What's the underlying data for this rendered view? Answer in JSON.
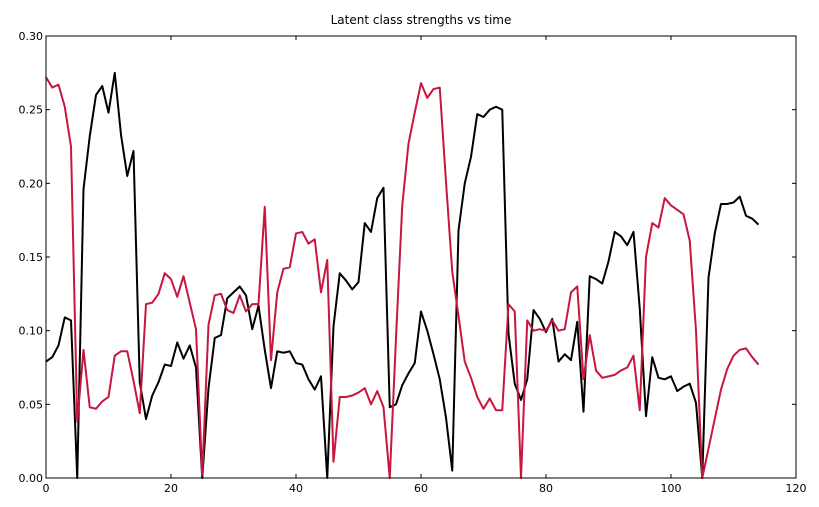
{
  "chart_data": {
    "type": "line",
    "title": "Latent class strengths vs time",
    "xlabel": "",
    "ylabel": "",
    "xlim": [
      0,
      120
    ],
    "ylim": [
      0.0,
      0.3
    ],
    "xticks": [
      0,
      20,
      40,
      60,
      80,
      100,
      120
    ],
    "yticks": [
      0.0,
      0.05,
      0.1,
      0.15,
      0.2,
      0.25,
      0.3
    ],
    "xtick_labels": [
      "0",
      "20",
      "40",
      "60",
      "80",
      "100",
      "120"
    ],
    "ytick_labels": [
      "0.00",
      "0.05",
      "0.10",
      "0.15",
      "0.20",
      "0.25",
      "0.30"
    ],
    "grid": false,
    "series": [
      {
        "color": "#000000",
        "x": [
          0,
          1,
          2,
          3,
          4,
          5,
          6,
          7,
          8,
          9,
          10,
          11,
          12,
          13,
          14,
          15,
          16,
          17,
          18,
          19,
          20,
          21,
          22,
          23,
          24,
          25,
          26,
          27,
          28,
          29,
          30,
          31,
          32,
          33,
          34,
          35,
          36,
          37,
          38,
          39,
          40,
          41,
          42,
          43,
          44,
          45,
          46,
          47,
          48,
          49,
          50,
          51,
          52,
          53,
          54,
          55,
          56,
          57,
          58,
          59,
          60,
          61,
          62,
          63,
          64,
          65,
          66,
          67,
          68,
          69,
          70,
          71,
          72,
          73,
          74,
          75,
          76,
          77,
          78,
          79,
          80,
          81,
          82,
          83,
          84,
          85,
          86,
          87,
          88,
          89,
          90,
          91,
          92,
          93,
          94,
          95,
          96,
          97,
          98,
          99,
          100,
          101,
          102,
          103,
          104,
          105,
          106,
          107,
          108,
          109,
          110,
          111,
          112,
          113,
          114
        ],
        "y": [
          0.079,
          0.082,
          0.09,
          0.109,
          0.107,
          0.0,
          0.196,
          0.232,
          0.26,
          0.266,
          0.248,
          0.275,
          0.233,
          0.205,
          0.222,
          0.065,
          0.04,
          0.056,
          0.065,
          0.077,
          0.076,
          0.092,
          0.081,
          0.09,
          0.075,
          0.0,
          0.061,
          0.095,
          0.097,
          0.122,
          0.126,
          0.13,
          0.124,
          0.101,
          0.117,
          0.087,
          0.061,
          0.086,
          0.085,
          0.086,
          0.078,
          0.077,
          0.067,
          0.06,
          0.069,
          0.0,
          0.103,
          0.139,
          0.134,
          0.128,
          0.133,
          0.173,
          0.167,
          0.19,
          0.197,
          0.048,
          0.05,
          0.063,
          0.071,
          0.078,
          0.113,
          0.1,
          0.084,
          0.067,
          0.041,
          0.005,
          0.168,
          0.2,
          0.218,
          0.247,
          0.245,
          0.25,
          0.252,
          0.25,
          0.098,
          0.064,
          0.053,
          0.067,
          0.114,
          0.108,
          0.099,
          0.108,
          0.079,
          0.084,
          0.08,
          0.106,
          0.045,
          0.137,
          0.135,
          0.132,
          0.147,
          0.167,
          0.164,
          0.158,
          0.167,
          0.115,
          0.042,
          0.082,
          0.068,
          0.067,
          0.069,
          0.059,
          0.062,
          0.064,
          0.051,
          0.0,
          0.136,
          0.166,
          0.186,
          0.186,
          0.187,
          0.191,
          0.178,
          0.176,
          0.172
        ]
      },
      {
        "color": "#c8163f",
        "x": [
          0,
          1,
          2,
          3,
          4,
          5,
          6,
          7,
          8,
          9,
          10,
          11,
          12,
          13,
          14,
          15,
          16,
          17,
          18,
          19,
          20,
          21,
          22,
          23,
          24,
          25,
          26,
          27,
          28,
          29,
          30,
          31,
          32,
          33,
          34,
          35,
          36,
          37,
          38,
          39,
          40,
          41,
          42,
          43,
          44,
          45,
          46,
          47,
          48,
          49,
          50,
          51,
          52,
          53,
          54,
          55,
          56,
          57,
          58,
          59,
          60,
          61,
          62,
          63,
          64,
          65,
          66,
          67,
          68,
          69,
          70,
          71,
          72,
          73,
          74,
          75,
          76,
          77,
          78,
          79,
          80,
          81,
          82,
          83,
          84,
          85,
          86,
          87,
          88,
          89,
          90,
          91,
          92,
          93,
          94,
          95,
          96,
          97,
          98,
          99,
          100,
          101,
          102,
          103,
          104,
          105,
          106,
          107,
          108,
          109,
          110,
          111,
          112,
          113,
          114
        ],
        "y": [
          0.272,
          0.265,
          0.267,
          0.252,
          0.225,
          0.038,
          0.087,
          0.048,
          0.047,
          0.052,
          0.055,
          0.083,
          0.086,
          0.086,
          0.066,
          0.044,
          0.118,
          0.119,
          0.125,
          0.139,
          0.135,
          0.123,
          0.137,
          0.119,
          0.101,
          0.002,
          0.104,
          0.124,
          0.125,
          0.114,
          0.112,
          0.124,
          0.113,
          0.118,
          0.118,
          0.184,
          0.08,
          0.126,
          0.142,
          0.143,
          0.166,
          0.167,
          0.159,
          0.162,
          0.126,
          0.148,
          0.011,
          0.055,
          0.055,
          0.056,
          0.058,
          0.061,
          0.05,
          0.059,
          0.048,
          0.0,
          0.095,
          0.185,
          0.227,
          0.248,
          0.268,
          0.258,
          0.264,
          0.265,
          0.201,
          0.14,
          0.11,
          0.079,
          0.068,
          0.055,
          0.047,
          0.054,
          0.046,
          0.046,
          0.118,
          0.113,
          0.0,
          0.107,
          0.1,
          0.101,
          0.1,
          0.107,
          0.1,
          0.101,
          0.126,
          0.13,
          0.067,
          0.097,
          0.073,
          0.068,
          0.069,
          0.07,
          0.073,
          0.075,
          0.083,
          0.046,
          0.15,
          0.173,
          0.17,
          0.19,
          0.185,
          0.182,
          0.179,
          0.161,
          0.1,
          0.0,
          0.02,
          0.04,
          0.06,
          0.074,
          0.083,
          0.087,
          0.088,
          0.082,
          0.077
        ]
      }
    ]
  }
}
